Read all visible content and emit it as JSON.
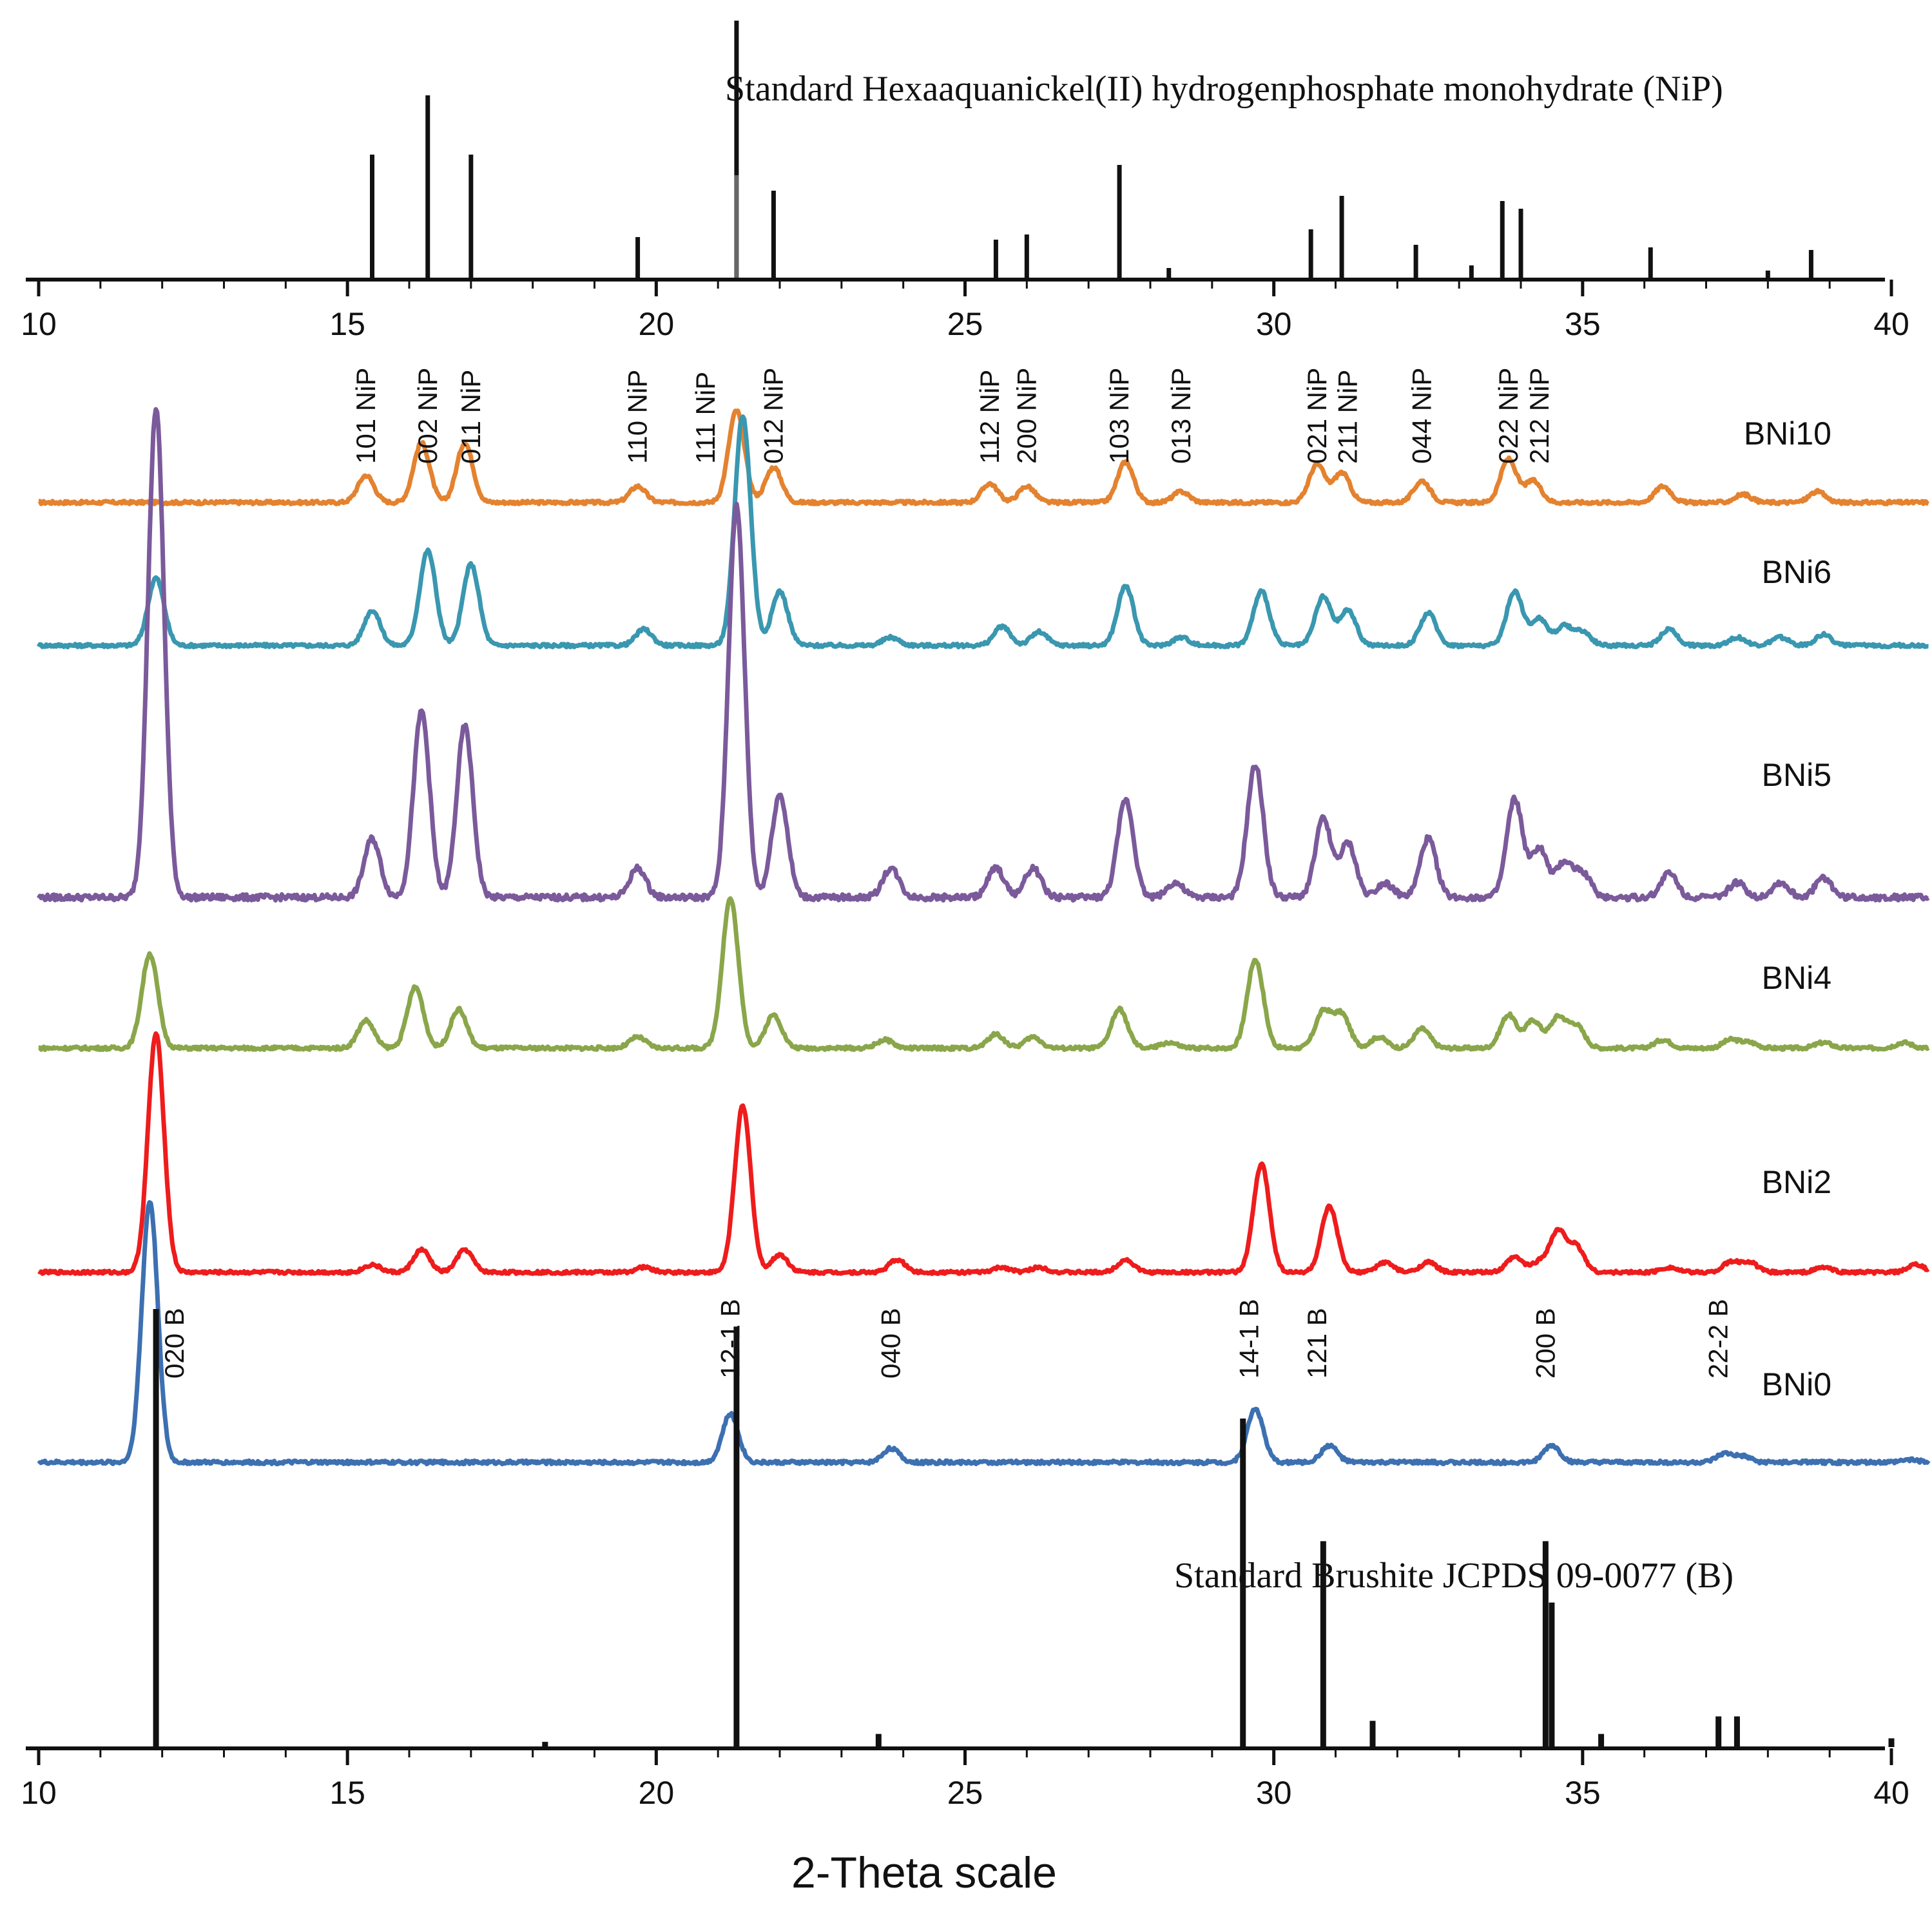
{
  "chart_data": {
    "type": "line",
    "xlabel": "2-Theta scale",
    "xlim": [
      10,
      40.6
    ],
    "x_ticks": [
      "10",
      "15",
      "20",
      "25",
      "30",
      "35",
      "40"
    ],
    "ref_top": {
      "title": "Standard Hexaaquanickel(II) hydrogenphosphate monohydrate (NiP)",
      "lines": [
        {
          "x": 15.4,
          "h": 0.48
        },
        {
          "x": 16.3,
          "h": 0.71
        },
        {
          "x": 17.0,
          "h": 0.48
        },
        {
          "x": 19.7,
          "h": 0.16
        },
        {
          "x": 21.3,
          "h": 1.0
        },
        {
          "x": 21.3,
          "h": 0.4
        },
        {
          "x": 21.9,
          "h": 0.34
        },
        {
          "x": 25.5,
          "h": 0.15
        },
        {
          "x": 26.0,
          "h": 0.17
        },
        {
          "x": 27.5,
          "h": 0.44
        },
        {
          "x": 28.3,
          "h": 0.04
        },
        {
          "x": 30.6,
          "h": 0.19
        },
        {
          "x": 31.1,
          "h": 0.32
        },
        {
          "x": 32.3,
          "h": 0.13
        },
        {
          "x": 33.2,
          "h": 0.05
        },
        {
          "x": 33.7,
          "h": 0.3
        },
        {
          "x": 34.0,
          "h": 0.27
        },
        {
          "x": 36.1,
          "h": 0.12
        },
        {
          "x": 38.0,
          "h": 0.03
        },
        {
          "x": 38.7,
          "h": 0.11
        }
      ]
    },
    "ref_bottom": {
      "title": "Standard Brushite JCPDS 09-0077 (B)",
      "lines": [
        {
          "x": 11.9,
          "h": 1.0
        },
        {
          "x": 18.2,
          "h": 0.012
        },
        {
          "x": 21.3,
          "h": 0.96
        },
        {
          "x": 23.6,
          "h": 0.03
        },
        {
          "x": 29.5,
          "h": 0.75
        },
        {
          "x": 30.8,
          "h": 0.47
        },
        {
          "x": 31.6,
          "h": 0.06
        },
        {
          "x": 34.4,
          "h": 0.47
        },
        {
          "x": 34.5,
          "h": 0.33
        },
        {
          "x": 35.3,
          "h": 0.03
        },
        {
          "x": 37.2,
          "h": 0.07
        },
        {
          "x": 37.5,
          "h": 0.07
        },
        {
          "x": 40.0,
          "h": 0.02
        }
      ]
    },
    "series": [
      {
        "name": "BNi10",
        "color": "#e4822f",
        "baseline": 0.0,
        "peaks": [
          [
            15.3,
            0.1
          ],
          [
            16.2,
            0.22
          ],
          [
            16.9,
            0.22
          ],
          [
            19.7,
            0.06
          ],
          [
            21.3,
            0.34
          ],
          [
            21.9,
            0.13
          ],
          [
            25.4,
            0.07
          ],
          [
            26.0,
            0.06
          ],
          [
            27.6,
            0.15
          ],
          [
            28.5,
            0.04
          ],
          [
            30.7,
            0.14
          ],
          [
            31.1,
            0.11
          ],
          [
            32.4,
            0.08
          ],
          [
            33.8,
            0.16
          ],
          [
            34.2,
            0.08
          ],
          [
            36.3,
            0.06
          ],
          [
            37.6,
            0.03
          ],
          [
            38.8,
            0.04
          ]
        ],
        "peak_labels": [
          {
            "x": 15.3,
            "text": "101 NiP"
          },
          {
            "x": 16.3,
            "text": "002 NiP"
          },
          {
            "x": 17.0,
            "text": "011 NiP"
          },
          {
            "x": 19.7,
            "text": "110 NiP"
          },
          {
            "x": 20.8,
            "text": "111 NiP"
          },
          {
            "x": 21.9,
            "text": "012 NiP"
          },
          {
            "x": 25.4,
            "text": "112 NiP"
          },
          {
            "x": 26.0,
            "text": "200 NiP"
          },
          {
            "x": 27.5,
            "text": "103 NiP"
          },
          {
            "x": 28.5,
            "text": "013 NiP"
          },
          {
            "x": 30.7,
            "text": "021 NiP"
          },
          {
            "x": 31.2,
            "text": "211 NiP"
          },
          {
            "x": 32.4,
            "text": "044 NiP"
          },
          {
            "x": 33.8,
            "text": "022 NiP"
          },
          {
            "x": 34.3,
            "text": "212 NiP"
          }
        ]
      },
      {
        "name": "BNi6",
        "color": "#3a97b0",
        "baseline": 0.0,
        "peaks": [
          [
            11.9,
            0.25
          ],
          [
            15.4,
            0.13
          ],
          [
            16.3,
            0.35
          ],
          [
            17.0,
            0.3
          ],
          [
            19.8,
            0.06
          ],
          [
            21.4,
            0.85
          ],
          [
            22.0,
            0.2
          ],
          [
            23.8,
            0.03
          ],
          [
            25.6,
            0.07
          ],
          [
            26.2,
            0.05
          ],
          [
            27.6,
            0.22
          ],
          [
            28.5,
            0.03
          ],
          [
            29.8,
            0.2
          ],
          [
            30.8,
            0.18
          ],
          [
            31.2,
            0.13
          ],
          [
            32.5,
            0.12
          ],
          [
            33.9,
            0.2
          ],
          [
            34.3,
            0.1
          ],
          [
            34.7,
            0.07
          ],
          [
            35.0,
            0.05
          ],
          [
            36.4,
            0.06
          ],
          [
            37.5,
            0.03
          ],
          [
            38.2,
            0.03
          ],
          [
            38.9,
            0.04
          ]
        ]
      },
      {
        "name": "BNi5",
        "color": "#7b5a9b",
        "baseline": 0.0,
        "peaks": [
          [
            11.9,
            1.0
          ],
          [
            15.4,
            0.12
          ],
          [
            16.2,
            0.38
          ],
          [
            16.9,
            0.35
          ],
          [
            19.7,
            0.06
          ],
          [
            21.3,
            0.8
          ],
          [
            22.0,
            0.21
          ],
          [
            23.8,
            0.06
          ],
          [
            25.5,
            0.06
          ],
          [
            26.1,
            0.06
          ],
          [
            27.6,
            0.2
          ],
          [
            28.4,
            0.03
          ],
          [
            29.7,
            0.27
          ],
          [
            30.8,
            0.16
          ],
          [
            31.2,
            0.11
          ],
          [
            31.8,
            0.03
          ],
          [
            32.5,
            0.12
          ],
          [
            33.9,
            0.2
          ],
          [
            34.3,
            0.1
          ],
          [
            34.7,
            0.07
          ],
          [
            35.0,
            0.05
          ],
          [
            36.4,
            0.05
          ],
          [
            37.5,
            0.03
          ],
          [
            38.2,
            0.03
          ],
          [
            38.9,
            0.04
          ]
        ]
      },
      {
        "name": "BNi4",
        "color": "#8aa64a",
        "baseline": 0.0,
        "peaks": [
          [
            11.8,
            0.34
          ],
          [
            15.3,
            0.1
          ],
          [
            16.1,
            0.22
          ],
          [
            16.8,
            0.14
          ],
          [
            19.7,
            0.04
          ],
          [
            21.2,
            0.54
          ],
          [
            21.9,
            0.12
          ],
          [
            23.7,
            0.03
          ],
          [
            25.5,
            0.05
          ],
          [
            26.1,
            0.04
          ],
          [
            27.5,
            0.14
          ],
          [
            28.3,
            0.02
          ],
          [
            29.7,
            0.32
          ],
          [
            30.8,
            0.13
          ],
          [
            31.1,
            0.12
          ],
          [
            31.7,
            0.04
          ],
          [
            32.4,
            0.07
          ],
          [
            33.8,
            0.12
          ],
          [
            34.2,
            0.1
          ],
          [
            34.6,
            0.11
          ],
          [
            34.9,
            0.08
          ],
          [
            36.3,
            0.03
          ],
          [
            37.4,
            0.03
          ],
          [
            37.7,
            0.02
          ],
          [
            38.9,
            0.02
          ],
          [
            40.2,
            0.02
          ]
        ]
      },
      {
        "name": "BNi2",
        "color": "#ee1c1c",
        "baseline": 0.0,
        "peaks": [
          [
            11.9,
            0.95
          ],
          [
            15.4,
            0.03
          ],
          [
            16.2,
            0.09
          ],
          [
            16.9,
            0.09
          ],
          [
            19.8,
            0.02
          ],
          [
            21.4,
            0.66
          ],
          [
            22.0,
            0.07
          ],
          [
            23.9,
            0.05
          ],
          [
            25.6,
            0.02
          ],
          [
            26.2,
            0.02
          ],
          [
            27.6,
            0.05
          ],
          [
            29.8,
            0.43
          ],
          [
            30.9,
            0.26
          ],
          [
            31.8,
            0.04
          ],
          [
            32.5,
            0.04
          ],
          [
            33.9,
            0.06
          ],
          [
            34.3,
            0.04
          ],
          [
            34.6,
            0.16
          ],
          [
            34.9,
            0.1
          ],
          [
            36.4,
            0.02
          ],
          [
            37.4,
            0.04
          ],
          [
            37.7,
            0.04
          ],
          [
            38.9,
            0.02
          ],
          [
            40.4,
            0.03
          ]
        ]
      },
      {
        "name": "BNi0",
        "color": "#3d70b1",
        "baseline": 0.0,
        "peaks": [
          [
            11.8,
            0.92
          ],
          [
            21.2,
            0.17
          ],
          [
            23.8,
            0.05
          ],
          [
            29.7,
            0.19
          ],
          [
            30.9,
            0.06
          ],
          [
            34.5,
            0.06
          ],
          [
            37.3,
            0.03
          ],
          [
            37.6,
            0.02
          ],
          [
            40.3,
            0.01
          ]
        ],
        "peak_labels": [
          {
            "x": 12.2,
            "text": "020 B"
          },
          {
            "x": 21.2,
            "text": "12-1 B"
          },
          {
            "x": 23.8,
            "text": "040 B"
          },
          {
            "x": 29.6,
            "text": "14-1 B"
          },
          {
            "x": 30.7,
            "text": "121 B"
          },
          {
            "x": 34.4,
            "text": "200 B"
          },
          {
            "x": 37.2,
            "text": "22-2 B"
          }
        ]
      }
    ]
  }
}
